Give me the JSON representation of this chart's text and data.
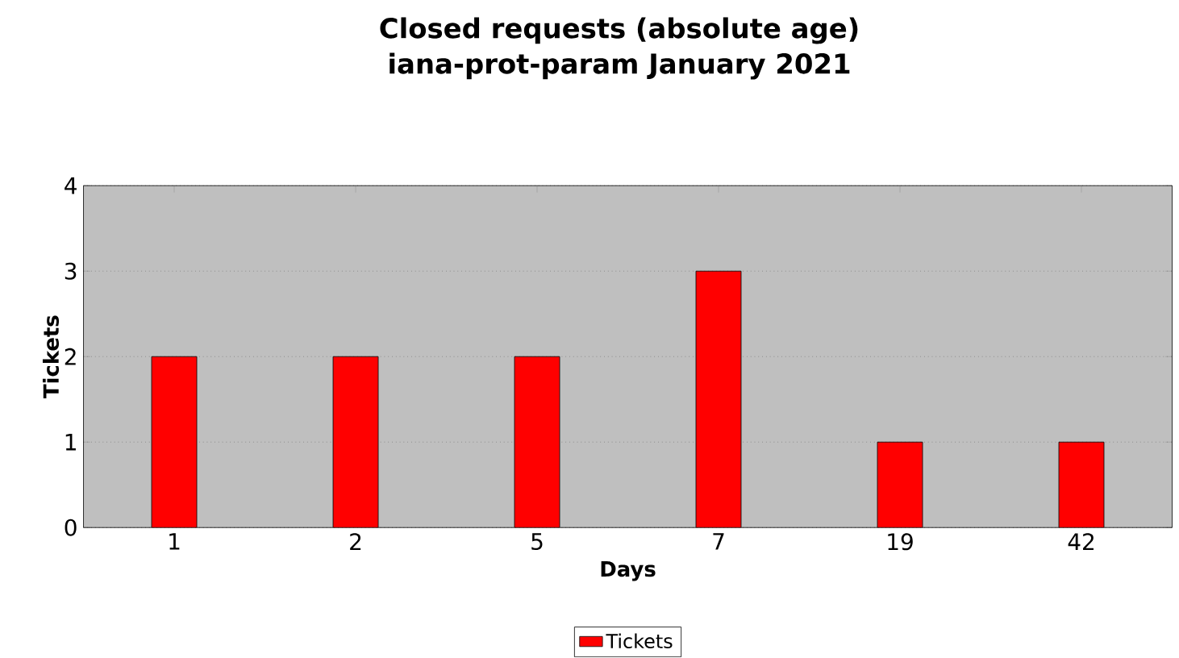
{
  "chart_data": {
    "type": "bar",
    "title": "Closed requests (absolute age)",
    "subtitle": "iana-prot-param January 2021",
    "xlabel": "Days",
    "ylabel": "Tickets",
    "categories": [
      "1",
      "2",
      "5",
      "7",
      "19",
      "42"
    ],
    "series": [
      {
        "name": "Tickets",
        "color": "#ff0000",
        "values": [
          2,
          2,
          2,
          3,
          1,
          1
        ]
      }
    ],
    "ylim": [
      0,
      4
    ],
    "yticks": [
      0,
      1,
      2,
      3,
      4
    ],
    "grid": "y",
    "legend": "bottom"
  }
}
